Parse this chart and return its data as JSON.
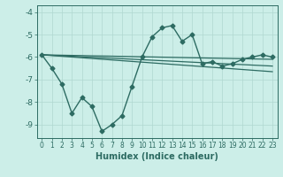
{
  "xlabel": "Humidex (Indice chaleur)",
  "bg_color": "#cceee8",
  "line_color": "#2d6b62",
  "grid_color": "#b0d8d0",
  "xlim": [
    -0.5,
    23.5
  ],
  "ylim": [
    -9.6,
    -3.7
  ],
  "yticks": [
    -9,
    -8,
    -7,
    -6,
    -5,
    -4
  ],
  "xticks": [
    0,
    1,
    2,
    3,
    4,
    5,
    6,
    7,
    8,
    9,
    10,
    11,
    12,
    13,
    14,
    15,
    16,
    17,
    18,
    19,
    20,
    21,
    22,
    23
  ],
  "series": [
    {
      "x": [
        0,
        1,
        2,
        3,
        4,
        5,
        6,
        7,
        8,
        9,
        10,
        11,
        12,
        13,
        14,
        15,
        16,
        17,
        18,
        19,
        20,
        21,
        22,
        23
      ],
      "y": [
        -5.9,
        -6.5,
        -7.2,
        -8.5,
        -7.8,
        -8.2,
        -9.3,
        -9.0,
        -8.6,
        -7.3,
        -6.0,
        -5.1,
        -4.7,
        -4.6,
        -5.3,
        -5.0,
        -6.3,
        -6.2,
        -6.4,
        -6.3,
        -6.1,
        -6.0,
        -5.9,
        -6.0
      ],
      "marker": "D",
      "markersize": 2.5,
      "linewidth": 1.0
    },
    {
      "x": [
        0,
        23
      ],
      "y": [
        -5.9,
        -6.1
      ],
      "marker": null,
      "linewidth": 0.9
    },
    {
      "x": [
        0,
        23
      ],
      "y": [
        -5.9,
        -6.4
      ],
      "marker": null,
      "linewidth": 0.9
    },
    {
      "x": [
        0,
        23
      ],
      "y": [
        -5.9,
        -6.65
      ],
      "marker": null,
      "linewidth": 0.9
    }
  ]
}
